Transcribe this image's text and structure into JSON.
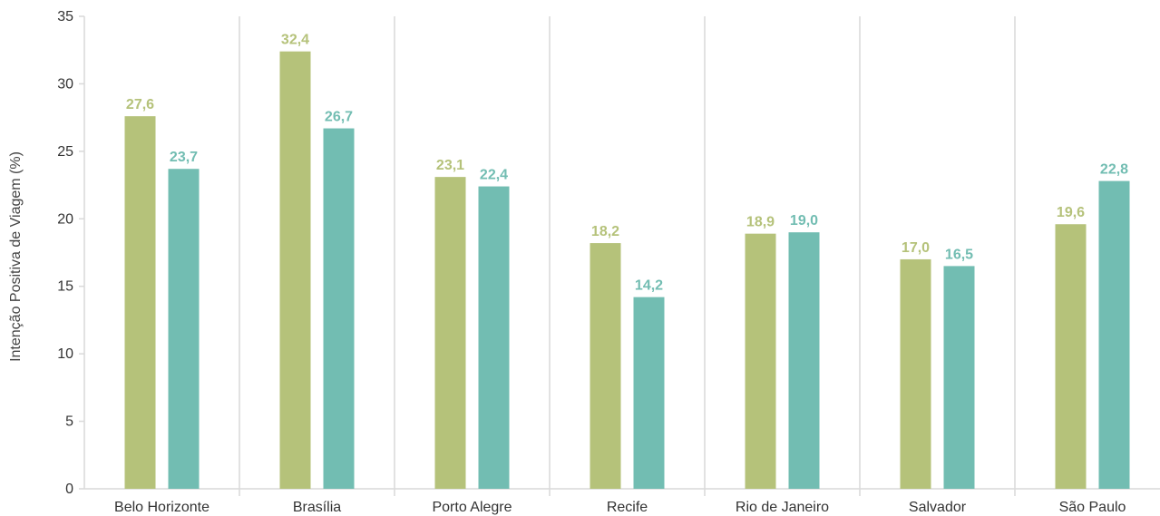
{
  "chart_data": {
    "type": "bar",
    "title": "",
    "xlabel": "",
    "ylabel": "Intenção Positiva de Viagem (%)",
    "ylim": [
      0,
      35
    ],
    "yticks": [
      0,
      5,
      10,
      15,
      20,
      25,
      30,
      35
    ],
    "grid": "vertical separators between categories",
    "legend": "none",
    "categories": [
      "Belo Horizonte",
      "Brasília",
      "Porto Alegre",
      "Recife",
      "Rio de Janeiro",
      "Salvador",
      "São Paulo"
    ],
    "series": [
      {
        "color": "#b5c27a",
        "values": [
          27.6,
          32.4,
          23.1,
          18.2,
          18.9,
          17.0,
          19.6
        ],
        "labels": [
          "27,6",
          "32,4",
          "23,1",
          "18,2",
          "18,9",
          "17,0",
          "19,6"
        ]
      },
      {
        "color": "#72bdb2",
        "values": [
          23.7,
          26.7,
          22.4,
          14.2,
          19.0,
          16.5,
          22.8
        ],
        "labels": [
          "23,7",
          "26,7",
          "22,4",
          "14,2",
          "19,0",
          "16,5",
          "22,8"
        ]
      }
    ]
  }
}
